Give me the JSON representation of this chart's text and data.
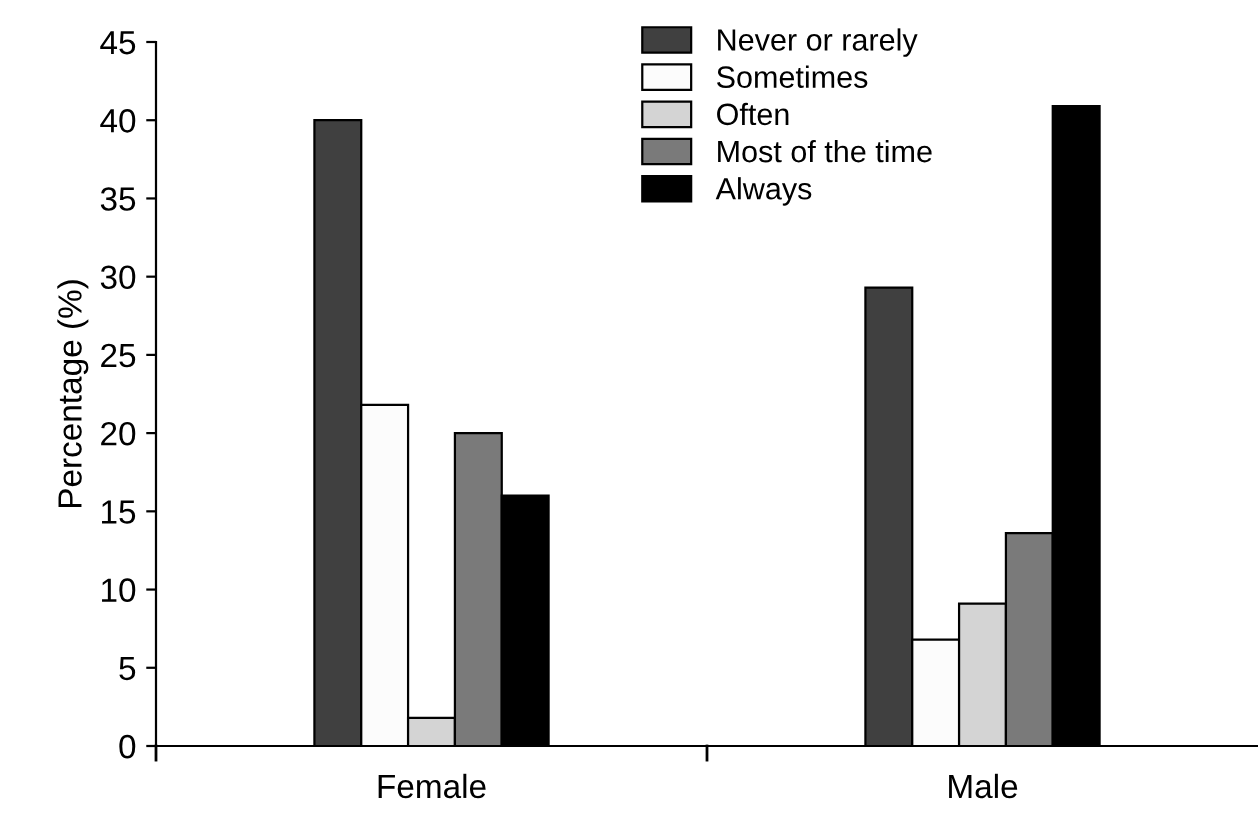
{
  "chart_data": {
    "type": "bar",
    "ylabel": "Percentage (%)",
    "categories": [
      "Female",
      "Male"
    ],
    "series": [
      {
        "name": "Never or rarely",
        "color": "#404040",
        "values": [
          40,
          29.3
        ]
      },
      {
        "name": "Sometimes",
        "color": "#fcfcfc",
        "values": [
          21.8,
          6.8
        ]
      },
      {
        "name": "Often",
        "color": "#d4d4d4",
        "values": [
          1.8,
          9.1
        ]
      },
      {
        "name": "Most of the time",
        "color": "#7a7a7a",
        "values": [
          20,
          13.6
        ]
      },
      {
        "name": "Always",
        "color": "#000000",
        "values": [
          16,
          40.9
        ]
      }
    ],
    "ylim": [
      0,
      45
    ],
    "yticks": [
      0,
      5,
      10,
      15,
      20,
      25,
      30,
      35,
      40,
      45
    ],
    "grid": false,
    "legend": "top right"
  }
}
